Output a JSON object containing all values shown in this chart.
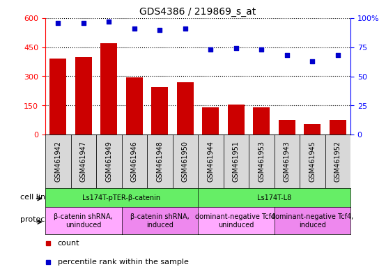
{
  "title": "GDS4386 / 219869_s_at",
  "samples": [
    "GSM461942",
    "GSM461947",
    "GSM461949",
    "GSM461946",
    "GSM461948",
    "GSM461950",
    "GSM461944",
    "GSM461951",
    "GSM461953",
    "GSM461943",
    "GSM461945",
    "GSM461952"
  ],
  "counts": [
    390,
    400,
    470,
    295,
    245,
    270,
    140,
    155,
    140,
    75,
    55,
    75
  ],
  "percentile": [
    96,
    96,
    97,
    91,
    90,
    91,
    73,
    74,
    73,
    68,
    63,
    68
  ],
  "bar_color": "#cc0000",
  "dot_color": "#0000cc",
  "left_ylim": [
    0,
    600
  ],
  "right_ylim": [
    0,
    100
  ],
  "left_yticks": [
    0,
    150,
    300,
    450,
    600
  ],
  "right_yticks": [
    0,
    25,
    50,
    75,
    100
  ],
  "cell_line_groups": [
    {
      "label": "Ls174T-pTER-β-catenin",
      "start": 0,
      "end": 6,
      "color": "#66ee66"
    },
    {
      "label": "Ls174T-L8",
      "start": 6,
      "end": 12,
      "color": "#66ee66"
    }
  ],
  "protocol_groups": [
    {
      "label": "β-catenin shRNA,\nuninduced",
      "start": 0,
      "end": 3,
      "color": "#ffaaff"
    },
    {
      "label": "β-catenin shRNA,\ninduced",
      "start": 3,
      "end": 6,
      "color": "#ee88ee"
    },
    {
      "label": "dominant-negative Tcf4,\nuninduced",
      "start": 6,
      "end": 9,
      "color": "#ffaaff"
    },
    {
      "label": "dominant-negative Tcf4,\ninduced",
      "start": 9,
      "end": 12,
      "color": "#ee88ee"
    }
  ],
  "cell_line_label": "cell line",
  "protocol_label": "protocol",
  "legend_count_label": "count",
  "legend_pct_label": "percentile rank within the sample",
  "sample_box_color": "#d8d8d8",
  "n_samples": 12
}
